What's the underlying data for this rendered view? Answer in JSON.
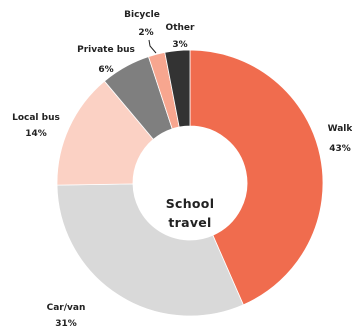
{
  "chart_data": {
    "type": "pie",
    "variant": "donut",
    "center_label": [
      "School",
      "travel"
    ],
    "slices": [
      {
        "label": "Walk",
        "value": 43,
        "value_text": "43%",
        "color": "#f06c4e"
      },
      {
        "label": "Car/van",
        "value": 31,
        "value_text": "31%",
        "color": "#d9d9d9"
      },
      {
        "label": "Local bus",
        "value": 14,
        "value_text": "14%",
        "color": "#fbd1c4"
      },
      {
        "label": "Private bus",
        "value": 6,
        "value_text": "6%",
        "color": "#7f7f7f"
      },
      {
        "label": "Bicycle",
        "value": 2,
        "value_text": "2%",
        "color": "#f7a68f"
      },
      {
        "label": "Other",
        "value": 3,
        "value_text": "3%",
        "color": "#333333"
      }
    ]
  }
}
